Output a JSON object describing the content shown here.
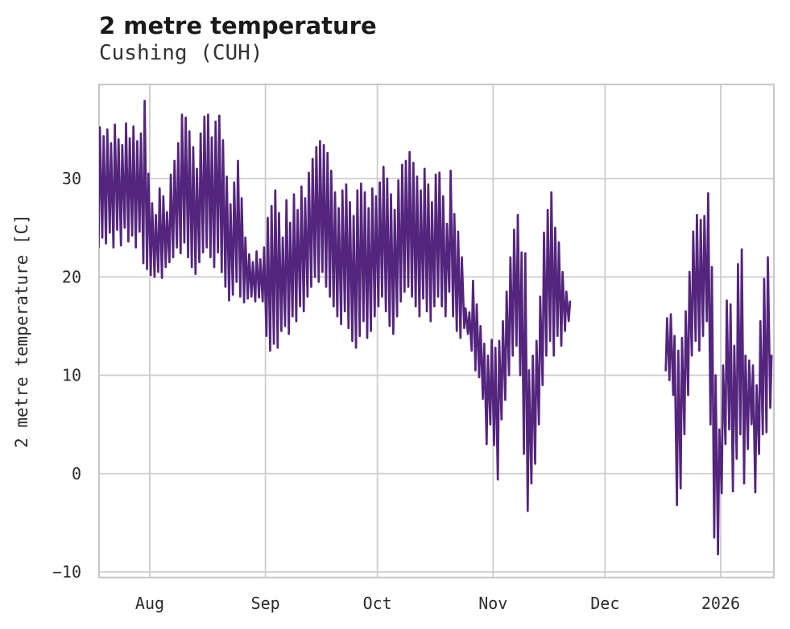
{
  "header": {
    "title": "2 metre temperature",
    "subtitle": "Cushing (CUH)"
  },
  "chart_data": {
    "type": "line",
    "title": "2 metre temperature",
    "subtitle": "Cushing (CUH)",
    "xlabel": "",
    "ylabel": "2 metre temperature [C]",
    "grid": true,
    "legend": "none",
    "line_color": "#54257d",
    "grid_color": "#cdcdcd",
    "frame_color": "#c8c8c8",
    "series_name": "2 metre temperature",
    "units": "C",
    "ylim": [
      -10.57,
      39.57
    ],
    "xlim_days": [
      0.41,
      181.25
    ],
    "y_ticks": [
      {
        "label": "30",
        "value": 30
      },
      {
        "label": "20",
        "value": 20
      },
      {
        "label": "10",
        "value": 10
      },
      {
        "label": "0",
        "value": 0
      },
      {
        "label": "−10",
        "value": -10
      }
    ],
    "x_ticks": [
      {
        "label": "Aug",
        "day": 14
      },
      {
        "label": "Sep",
        "day": 45
      },
      {
        "label": "Oct",
        "day": 75
      },
      {
        "label": "Nov",
        "day": 106
      },
      {
        "label": "Dec",
        "day": 136
      },
      {
        "label": "2026",
        "day": 167
      }
    ],
    "x_note": "day 0 = first sample (mid-July); gap where values are null",
    "daily_min": [
      23.0,
      24.0,
      23.4,
      24.5,
      23.0,
      24.8,
      23.2,
      25.0,
      23.6,
      24.2,
      23.0,
      24.6,
      21.4,
      20.8,
      20.2,
      20.0,
      20.5,
      19.9,
      21.0,
      21.5,
      22.0,
      23.0,
      22.4,
      23.5,
      22.0,
      21.0,
      20.3,
      21.5,
      22.5,
      23.0,
      22.0,
      21.0,
      22.5,
      20.5,
      19.0,
      17.6,
      18.2,
      19.5,
      18.0,
      17.4,
      17.8,
      18.0,
      17.5,
      17.9,
      17.5,
      14.0,
      12.5,
      13.2,
      12.8,
      14.5,
      15.0,
      14.2,
      16.0,
      15.5,
      17.0,
      16.5,
      18.0,
      19.0,
      20.0,
      19.5,
      20.5,
      19.0,
      18.0,
      17.0,
      16.0,
      15.2,
      16.5,
      14.8,
      13.5,
      12.8,
      14.0,
      15.5,
      13.8,
      14.5,
      16.0,
      17.0,
      18.0,
      16.5,
      15.0,
      14.2,
      16.0,
      17.5,
      18.5,
      19.0,
      18.0,
      17.0,
      16.0,
      17.8,
      16.5,
      15.5,
      17.0,
      18.0,
      17.0,
      16.0,
      18.5,
      16.0,
      14.5,
      13.8,
      14.8,
      14.2,
      12.5,
      10.5,
      9.8,
      7.6,
      3.0,
      5.0,
      2.9,
      -0.6,
      5.5,
      7.5,
      10.0,
      12.0,
      13.0,
      10.0,
      2.0,
      -3.8,
      -1.0,
      1.0,
      5.0,
      9.0,
      12.0,
      13.5,
      12.0,
      14.0,
      13.0,
      14.5,
      15.5,
      null,
      null,
      null,
      null,
      null,
      null,
      null,
      null,
      null,
      null,
      null,
      null,
      null,
      null,
      null,
      null,
      null,
      null,
      null,
      null,
      null,
      null,
      null,
      null,
      null,
      10.5,
      9.5,
      8.0,
      -3.2,
      -1.5,
      4.0,
      8.0,
      12.0,
      13.5,
      12.5,
      14.0,
      15.5,
      5.0,
      -6.5,
      -8.2,
      -2.0,
      3.0,
      4.5,
      -1.8,
      1.5,
      4.0,
      -1.0,
      2.5,
      5.0,
      -1.9,
      2.0,
      4.0,
      4.2,
      6.7
    ],
    "daily_max": [
      35.2,
      34.3,
      35.0,
      33.6,
      35.5,
      34.0,
      33.4,
      35.6,
      34.1,
      35.3,
      33.8,
      34.6,
      37.9,
      30.5,
      27.5,
      26.3,
      29.0,
      28.2,
      26.6,
      30.4,
      31.8,
      33.6,
      36.5,
      36.2,
      34.8,
      33.2,
      31.0,
      34.6,
      36.3,
      36.5,
      34.2,
      35.8,
      36.4,
      33.9,
      30.2,
      27.4,
      29.6,
      31.8,
      28.0,
      24.0,
      22.3,
      21.5,
      22.6,
      21.8,
      23.0,
      26.0,
      27.2,
      28.8,
      26.5,
      24.0,
      27.8,
      25.5,
      28.4,
      26.8,
      29.2,
      28.0,
      30.6,
      32.0,
      33.2,
      33.8,
      33.4,
      32.6,
      30.8,
      28.6,
      27.0,
      28.8,
      29.4,
      27.6,
      26.2,
      28.8,
      29.5,
      28.6,
      27.0,
      29.0,
      28.2,
      29.6,
      31.2,
      30.0,
      28.4,
      26.8,
      29.8,
      31.4,
      31.8,
      32.7,
      31.6,
      30.2,
      28.8,
      31.0,
      29.4,
      27.6,
      30.4,
      30.6,
      28.2,
      25.4,
      30.8,
      26.4,
      24.6,
      22.0,
      16.8,
      16.4,
      19.6,
      17.2,
      15.0,
      13.2,
      12.0,
      13.6,
      12.8,
      13.5,
      15.5,
      18.5,
      22.0,
      24.8,
      26.3,
      22.5,
      22.4,
      10.5,
      12.0,
      13.5,
      18.0,
      24.5,
      26.8,
      28.6,
      25.0,
      23.5,
      20.5,
      18.5,
      17.5,
      null,
      null,
      null,
      null,
      null,
      null,
      null,
      null,
      null,
      null,
      null,
      null,
      null,
      null,
      null,
      null,
      null,
      null,
      null,
      null,
      null,
      null,
      null,
      null,
      null,
      15.8,
      16.2,
      14.0,
      12.5,
      13.8,
      16.5,
      20.5,
      24.6,
      26.3,
      25.8,
      26.2,
      28.5,
      21.0,
      10.0,
      4.5,
      11.0,
      17.6,
      17.2,
      13.0,
      21.3,
      22.8,
      12.0,
      11.5,
      11.0,
      9.0,
      15.5,
      19.8,
      22.0,
      12.0
    ]
  }
}
